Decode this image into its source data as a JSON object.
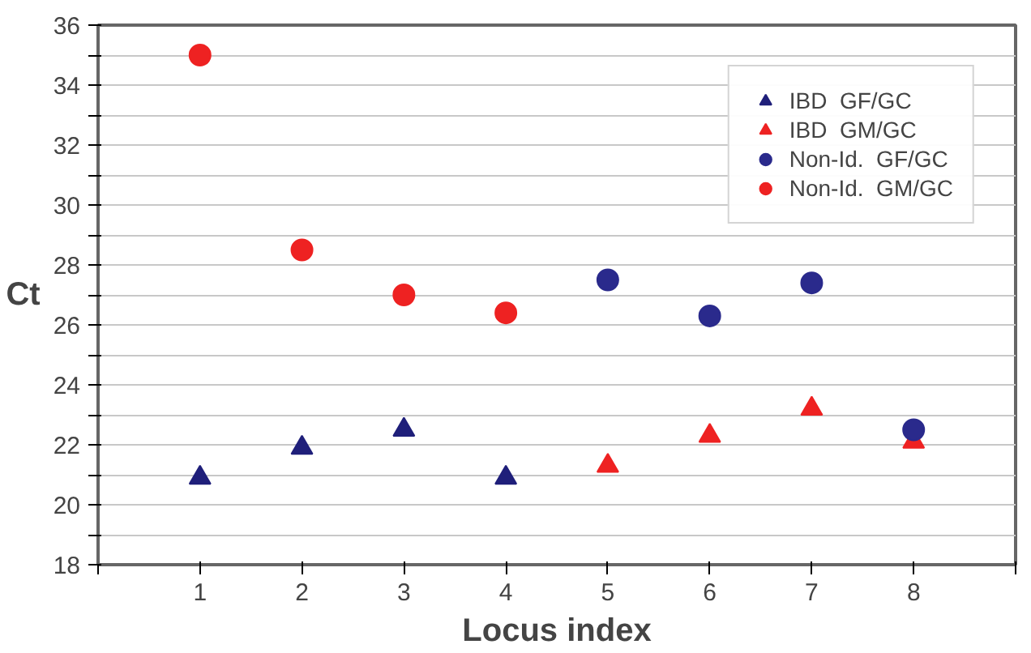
{
  "chart_data": {
    "type": "scatter",
    "xlabel": "Locus index",
    "ylabel": "Ct",
    "xlim": [
      0,
      9
    ],
    "xticks": [
      {
        "value": 0,
        "label": null
      },
      1,
      2,
      3,
      4,
      5,
      6,
      7,
      8,
      {
        "value": 9,
        "label": null
      }
    ],
    "ylim": [
      18,
      36
    ],
    "yticks": [
      18,
      {
        "value": 19,
        "label": null
      },
      20,
      {
        "value": 21,
        "label": null
      },
      22,
      {
        "value": 23,
        "label": null
      },
      24,
      {
        "value": 25,
        "label": null
      },
      26,
      {
        "value": 27,
        "label": null
      },
      28,
      {
        "value": 29,
        "label": null
      },
      30,
      {
        "value": 31,
        "label": null
      },
      32,
      {
        "value": 33,
        "label": null
      },
      34,
      {
        "value": 35,
        "label": null
      },
      36
    ],
    "grid": "y",
    "legend": "top right",
    "series": [
      {
        "name": "IBD  GF/GC",
        "color": "#1f1f7a",
        "marker": "triangle",
        "x": [
          1,
          2,
          3,
          4
        ],
        "values": [
          20.9,
          21.9,
          22.5,
          20.9
        ]
      },
      {
        "name": "IBD  GM/GC",
        "color": "#ee2222",
        "marker": "triangle",
        "x": [
          5,
          6,
          7,
          8
        ],
        "values": [
          21.3,
          22.3,
          23.2,
          22.1
        ]
      },
      {
        "name": "Non-Id.  GF/GC",
        "color": "#2a2a8c",
        "marker": "circle",
        "x": [
          5,
          6,
          7,
          8
        ],
        "values": [
          27.5,
          26.3,
          27.4,
          22.5
        ]
      },
      {
        "name": "Non-Id.  GM/GC",
        "color": "#ee2222",
        "marker": "circle",
        "x": [
          1,
          2,
          3,
          4
        ],
        "values": [
          35.0,
          28.5,
          27.0,
          26.4
        ]
      }
    ]
  }
}
